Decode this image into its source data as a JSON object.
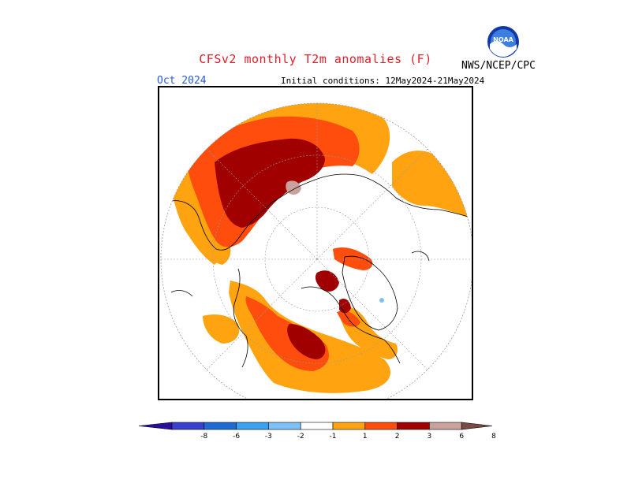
{
  "header": {
    "title": "CFSv2 monthly T2m anomalies (F)",
    "agency": "NWS/NCEP/CPC",
    "logo_text": "NOAA",
    "valid_month": "Oct 2024",
    "initial_conditions": "Initial conditions: 12May2024-21May2024"
  },
  "colorbar": {
    "tick_labels": [
      "-8",
      "-6",
      "-3",
      "-2",
      "-1",
      "1",
      "2",
      "3",
      "6",
      "8"
    ],
    "colors": {
      "below_min": "#2a0f9c",
      "c1": "#3b3fd0",
      "c2": "#1f6bd6",
      "c3": "#3aa0f0",
      "c4": "#7ec0f8",
      "neutral": "#ffffff",
      "w1": "#ffa410",
      "w2": "#ff4d0d",
      "w3": "#a00000",
      "w4": "#c9a29e",
      "above_max": "#7a4a44"
    }
  },
  "map": {
    "projection": "north polar stereographic",
    "land_outline_color": "#000000",
    "graticule_color": "#9a9a9a"
  }
}
